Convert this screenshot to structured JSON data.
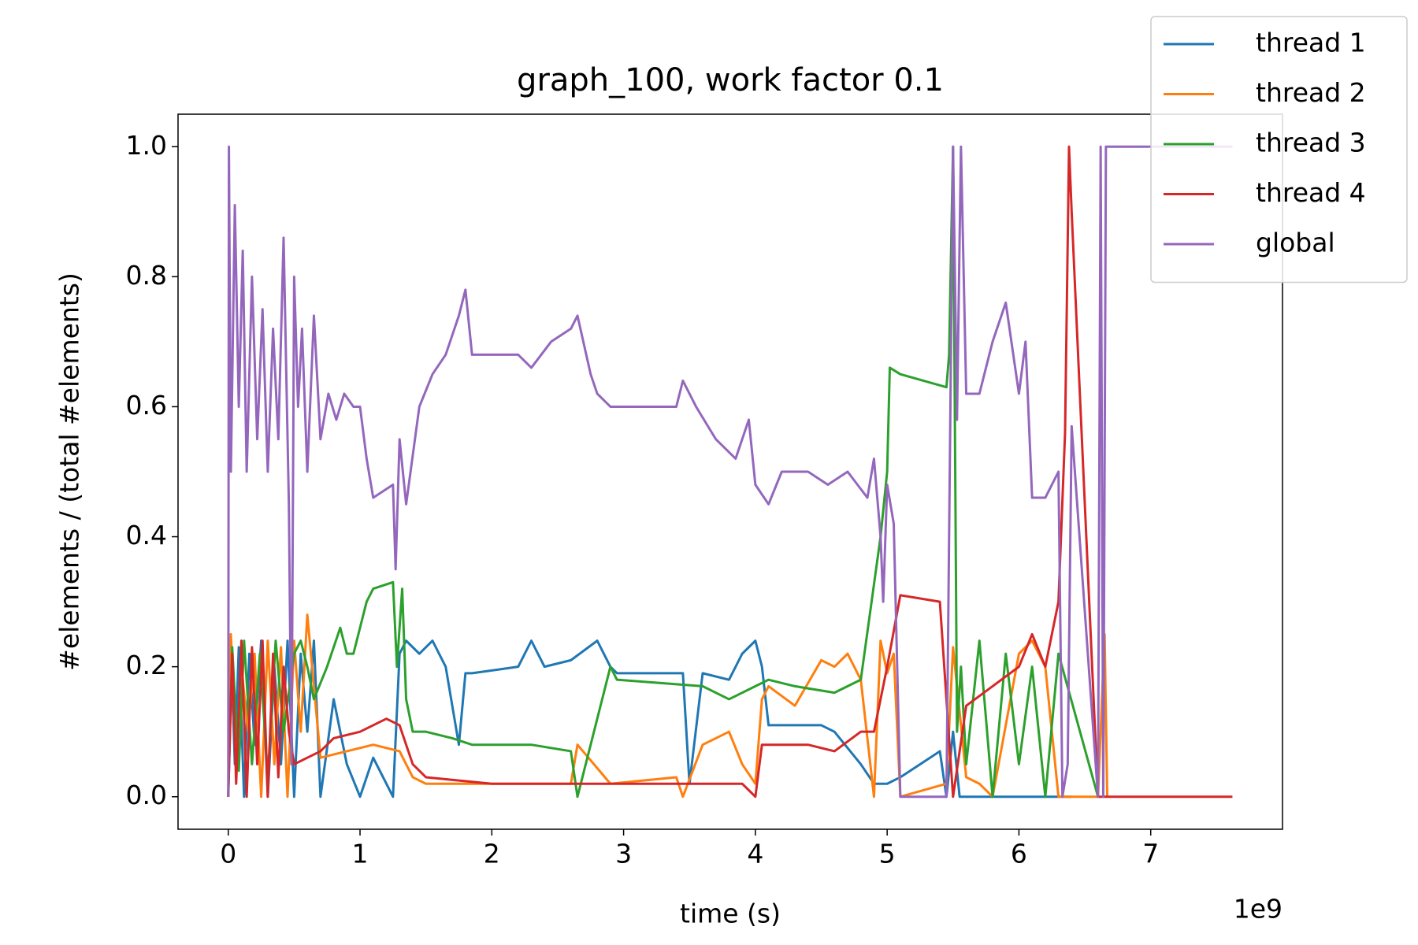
{
  "chart_data": {
    "type": "line",
    "title": "graph_100, work factor 0.1",
    "x_label": "time (s)",
    "y_label": "#elements / (total #elements)",
    "x_offset_label": "1e9",
    "xlim": [
      -0.381,
      8.0
    ],
    "ylim": [
      -0.05,
      1.05
    ],
    "xticks": [
      0,
      1,
      2,
      3,
      4,
      5,
      6,
      7
    ],
    "yticks": [
      {
        "value": 0,
        "label": "0.0"
      },
      {
        "value": 0.2,
        "label": "0.2"
      },
      {
        "value": 0.4,
        "label": "0.4"
      },
      {
        "value": 0.6,
        "label": "0.6"
      },
      {
        "value": 0.8,
        "label": "0.8"
      },
      {
        "value": 1.0,
        "label": "1.0"
      }
    ],
    "grid": false,
    "legend": "upper right",
    "series": [
      {
        "name": "thread 1",
        "color": "#1f77b4",
        "x": [
          0,
          0.02,
          0.05,
          0.08,
          0.12,
          0.16,
          0.2,
          0.25,
          0.3,
          0.35,
          0.4,
          0.45,
          0.5,
          0.55,
          0.6,
          0.65,
          0.7,
          0.8,
          0.9,
          1.0,
          1.1,
          1.2,
          1.25,
          1.3,
          1.35,
          1.45,
          1.55,
          1.65,
          1.75,
          1.8,
          1.85,
          2.2,
          2.3,
          2.4,
          2.6,
          2.8,
          2.9,
          2.95,
          3.45,
          3.5,
          3.6,
          3.8,
          3.9,
          4.0,
          4.05,
          4.1,
          4.5,
          4.6,
          4.8,
          4.9,
          5.0,
          5.1,
          5.4,
          5.45,
          5.5,
          5.55,
          5.6,
          6.3,
          6.4
        ],
        "values": [
          0,
          0.24,
          0.05,
          0.23,
          0,
          0.22,
          0.08,
          0.24,
          0,
          0.2,
          0.05,
          0.24,
          0,
          0.22,
          0.1,
          0.24,
          0,
          0.15,
          0.05,
          0,
          0.06,
          0.02,
          0,
          0.22,
          0.24,
          0.22,
          0.24,
          0.2,
          0.08,
          0.19,
          0.19,
          0.2,
          0.24,
          0.2,
          0.21,
          0.24,
          0.2,
          0.19,
          0.19,
          0.02,
          0.19,
          0.18,
          0.22,
          0.24,
          0.2,
          0.11,
          0.11,
          0.1,
          0.05,
          0.02,
          0.02,
          0.03,
          0.07,
          0,
          0.1,
          0,
          0,
          0,
          0
        ]
      },
      {
        "name": "thread 2",
        "color": "#ff7f0e",
        "x": [
          0,
          0.02,
          0.06,
          0.1,
          0.15,
          0.2,
          0.25,
          0.3,
          0.35,
          0.4,
          0.45,
          0.5,
          0.55,
          0.6,
          0.7,
          0.9,
          1.1,
          1.3,
          1.4,
          1.5,
          2.0,
          2.6,
          2.65,
          2.9,
          3.4,
          3.45,
          3.6,
          3.8,
          3.9,
          4.0,
          4.05,
          4.1,
          4.3,
          4.5,
          4.6,
          4.7,
          4.8,
          4.9,
          4.95,
          5.0,
          5.05,
          5.1,
          5.45,
          5.5,
          5.6,
          5.7,
          5.8,
          6.0,
          6.1,
          6.2,
          6.3,
          6.6,
          6.65,
          6.67
        ],
        "values": [
          0,
          0.25,
          0.05,
          0.2,
          0.1,
          0.22,
          0,
          0.24,
          0.05,
          0.23,
          0,
          0.24,
          0.1,
          0.28,
          0.06,
          0.07,
          0.08,
          0.07,
          0.03,
          0.02,
          0.02,
          0.02,
          0.08,
          0.02,
          0.03,
          0,
          0.08,
          0.1,
          0.05,
          0.02,
          0.15,
          0.17,
          0.14,
          0.21,
          0.2,
          0.22,
          0.18,
          0,
          0.24,
          0.19,
          0.22,
          0,
          0.02,
          0.23,
          0.03,
          0.02,
          0,
          0.22,
          0.24,
          0.2,
          0,
          0,
          0.25,
          0
        ]
      },
      {
        "name": "thread 3",
        "color": "#2ca02c",
        "x": [
          0,
          0.03,
          0.08,
          0.12,
          0.18,
          0.24,
          0.3,
          0.36,
          0.42,
          0.5,
          0.55,
          0.6,
          0.65,
          0.75,
          0.85,
          0.9,
          0.95,
          1.05,
          1.1,
          1.25,
          1.28,
          1.32,
          1.35,
          1.4,
          1.5,
          1.7,
          1.85,
          2.3,
          2.6,
          2.65,
          2.9,
          2.95,
          3.6,
          3.8,
          4.0,
          4.1,
          4.3,
          4.6,
          4.8,
          4.95,
          5.0,
          5.02,
          5.1,
          5.45,
          5.47,
          5.5,
          5.53,
          5.56,
          5.6,
          5.7,
          5.8,
          5.9,
          6.0,
          6.1,
          6.2,
          6.3,
          6.6
        ],
        "values": [
          0,
          0.23,
          0.04,
          0.24,
          0.05,
          0.22,
          0.03,
          0.24,
          0.1,
          0.22,
          0.24,
          0.2,
          0.15,
          0.2,
          0.26,
          0.22,
          0.22,
          0.3,
          0.32,
          0.33,
          0.2,
          0.32,
          0.15,
          0.1,
          0.1,
          0.09,
          0.08,
          0.08,
          0.07,
          0,
          0.2,
          0.18,
          0.17,
          0.15,
          0.17,
          0.18,
          0.17,
          0.16,
          0.18,
          0.4,
          0.5,
          0.66,
          0.65,
          0.63,
          0.68,
          1.0,
          0.1,
          0.2,
          0.05,
          0.24,
          0,
          0.22,
          0.05,
          0.2,
          0,
          0.22,
          0
        ]
      },
      {
        "name": "thread 4",
        "color": "#d62728",
        "x": [
          0,
          0.03,
          0.06,
          0.1,
          0.14,
          0.18,
          0.22,
          0.26,
          0.3,
          0.34,
          0.38,
          0.42,
          0.46,
          0.5,
          0.6,
          0.7,
          0.8,
          1.0,
          1.2,
          1.3,
          1.4,
          1.5,
          2.0,
          3.0,
          3.9,
          4.0,
          4.05,
          4.1,
          4.4,
          4.6,
          4.8,
          4.9,
          5.0,
          5.1,
          5.4,
          5.5,
          5.6,
          5.8,
          6.0,
          6.1,
          6.2,
          6.3,
          6.35,
          6.38,
          6.4,
          6.6,
          7.62
        ],
        "values": [
          0,
          0.22,
          0.02,
          0.24,
          0,
          0.23,
          0.05,
          0.24,
          0,
          0.22,
          0.03,
          0.2,
          0.1,
          0.05,
          0.06,
          0.07,
          0.09,
          0.1,
          0.12,
          0.11,
          0.05,
          0.03,
          0.02,
          0.02,
          0.02,
          0,
          0.08,
          0.08,
          0.08,
          0.07,
          0.1,
          0.1,
          0.2,
          0.31,
          0.3,
          0,
          0.14,
          0.17,
          0.2,
          0.25,
          0.2,
          0.3,
          0.56,
          1.0,
          0.9,
          0,
          0
        ]
      },
      {
        "name": "global",
        "color": "#9467bd",
        "x": [
          0,
          0.005,
          0.02,
          0.05,
          0.08,
          0.11,
          0.14,
          0.18,
          0.22,
          0.26,
          0.3,
          0.34,
          0.38,
          0.42,
          0.46,
          0.48,
          0.5,
          0.53,
          0.56,
          0.6,
          0.65,
          0.7,
          0.76,
          0.82,
          0.88,
          0.95,
          1.0,
          1.05,
          1.1,
          1.25,
          1.27,
          1.3,
          1.35,
          1.45,
          1.55,
          1.65,
          1.75,
          1.8,
          1.85,
          2.2,
          2.3,
          2.45,
          2.6,
          2.65,
          2.75,
          2.8,
          2.9,
          3.4,
          3.45,
          3.55,
          3.7,
          3.85,
          3.95,
          4.0,
          4.1,
          4.2,
          4.4,
          4.55,
          4.7,
          4.85,
          4.9,
          4.95,
          4.97,
          5.0,
          5.05,
          5.1,
          5.45,
          5.5,
          5.53,
          5.56,
          5.6,
          5.7,
          5.8,
          5.9,
          6.0,
          6.05,
          6.1,
          6.2,
          6.25,
          6.3,
          6.33,
          6.37,
          6.4,
          6.6,
          6.62,
          6.64,
          6.66,
          7.62
        ],
        "values": [
          0,
          1.0,
          0.5,
          0.91,
          0.6,
          0.84,
          0.5,
          0.8,
          0.55,
          0.75,
          0.5,
          0.72,
          0.55,
          0.86,
          0.45,
          0.05,
          0.8,
          0.6,
          0.72,
          0.5,
          0.74,
          0.55,
          0.62,
          0.58,
          0.62,
          0.6,
          0.6,
          0.52,
          0.46,
          0.48,
          0.35,
          0.55,
          0.45,
          0.6,
          0.65,
          0.68,
          0.74,
          0.78,
          0.68,
          0.68,
          0.66,
          0.7,
          0.72,
          0.74,
          0.65,
          0.62,
          0.6,
          0.6,
          0.64,
          0.6,
          0.55,
          0.52,
          0.58,
          0.48,
          0.45,
          0.5,
          0.5,
          0.48,
          0.5,
          0.46,
          0.52,
          0.4,
          0.3,
          0.48,
          0.42,
          0,
          0,
          1.0,
          0.58,
          1.0,
          0.62,
          0.62,
          0.7,
          0.76,
          0.62,
          0.7,
          0.46,
          0.46,
          0.48,
          0.5,
          0,
          0.05,
          0.57,
          0,
          1.0,
          0,
          1.0,
          1.0
        ]
      }
    ]
  }
}
